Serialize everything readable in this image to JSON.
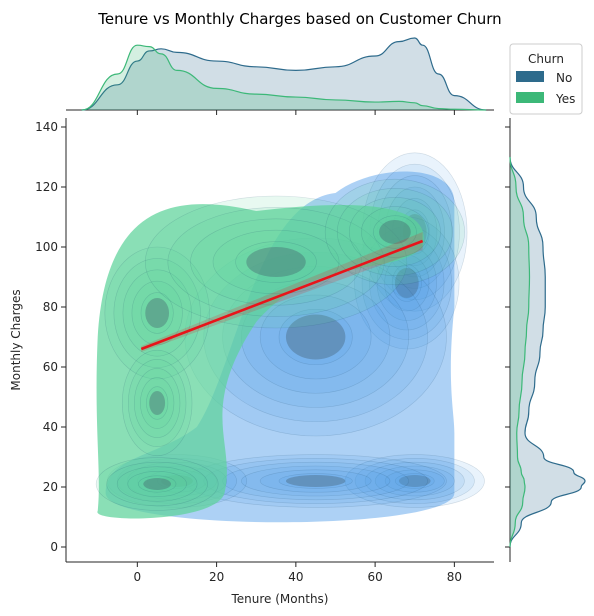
{
  "chart_data": {
    "type": "kde_joint",
    "title": "Tenure vs Monthly Charges based on Customer Churn",
    "xlabel": "Tenure (Months)",
    "ylabel": "Monthly Charges",
    "xlim": [
      -18,
      90
    ],
    "ylim": [
      -5,
      143
    ],
    "xticks": [
      0,
      20,
      40,
      60,
      80
    ],
    "yticks": [
      0,
      20,
      40,
      60,
      80,
      100,
      120,
      140
    ],
    "legend": {
      "title": "Churn",
      "position": "top-right",
      "entries": [
        {
          "label": "No",
          "color": "#2e6b8c"
        },
        {
          "label": "Yes",
          "color": "#3cb878"
        }
      ]
    },
    "series": [
      {
        "name": "No",
        "fill": "#4a9ae8",
        "marginal_color": "#2e6b8c",
        "peaks": [
          {
            "x": 70,
            "y": 105,
            "sx": 6,
            "sy": 12
          },
          {
            "x": 68,
            "y": 88,
            "sx": 6,
            "sy": 10
          },
          {
            "x": 70,
            "y": 22,
            "sx": 8,
            "sy": 4
          },
          {
            "x": 45,
            "y": 22,
            "sx": 15,
            "sy": 4
          },
          {
            "x": 10,
            "y": 22,
            "sx": 8,
            "sy": 4
          },
          {
            "x": 45,
            "y": 70,
            "sx": 15,
            "sy": 15
          }
        ]
      },
      {
        "name": "Yes",
        "fill": "#5dd39a",
        "marginal_color": "#3cb878",
        "peaks": [
          {
            "x": 5,
            "y": 78,
            "sx": 6,
            "sy": 10
          },
          {
            "x": 5,
            "y": 48,
            "sx": 4,
            "sy": 8
          },
          {
            "x": 5,
            "y": 21,
            "sx": 7,
            "sy": 4
          },
          {
            "x": 35,
            "y": 95,
            "sx": 15,
            "sy": 10
          },
          {
            "x": 65,
            "y": 105,
            "sx": 8,
            "sy": 8
          }
        ]
      }
    ],
    "regression": {
      "color": "#e8141a",
      "x": [
        1,
        72
      ],
      "y": [
        66,
        102
      ]
    },
    "marginal_x": {
      "x": [
        -14,
        -5,
        0,
        3,
        6,
        10,
        20,
        30,
        40,
        50,
        60,
        66,
        70,
        72,
        76,
        80,
        88
      ],
      "No": [
        0,
        0.35,
        0.68,
        0.82,
        0.85,
        0.8,
        0.68,
        0.6,
        0.55,
        0.6,
        0.75,
        0.95,
        1.0,
        0.9,
        0.5,
        0.2,
        0
      ],
      "Yes": [
        0,
        0.5,
        0.9,
        0.88,
        0.78,
        0.55,
        0.3,
        0.22,
        0.18,
        0.14,
        0.11,
        0.12,
        0.1,
        0.06,
        0.02,
        0.01,
        0
      ]
    },
    "marginal_y": {
      "y": [
        0,
        8,
        15,
        20,
        22,
        25,
        30,
        38,
        45,
        55,
        65,
        72,
        80,
        90,
        100,
        110,
        120,
        130
      ],
      "No": [
        0,
        0.15,
        0.55,
        0.95,
        1.0,
        0.85,
        0.45,
        0.2,
        0.25,
        0.33,
        0.4,
        0.44,
        0.47,
        0.47,
        0.44,
        0.35,
        0.18,
        0
      ],
      "Yes": [
        0,
        0.07,
        0.17,
        0.2,
        0.19,
        0.15,
        0.1,
        0.09,
        0.12,
        0.16,
        0.2,
        0.22,
        0.25,
        0.26,
        0.25,
        0.18,
        0.08,
        0
      ]
    }
  }
}
